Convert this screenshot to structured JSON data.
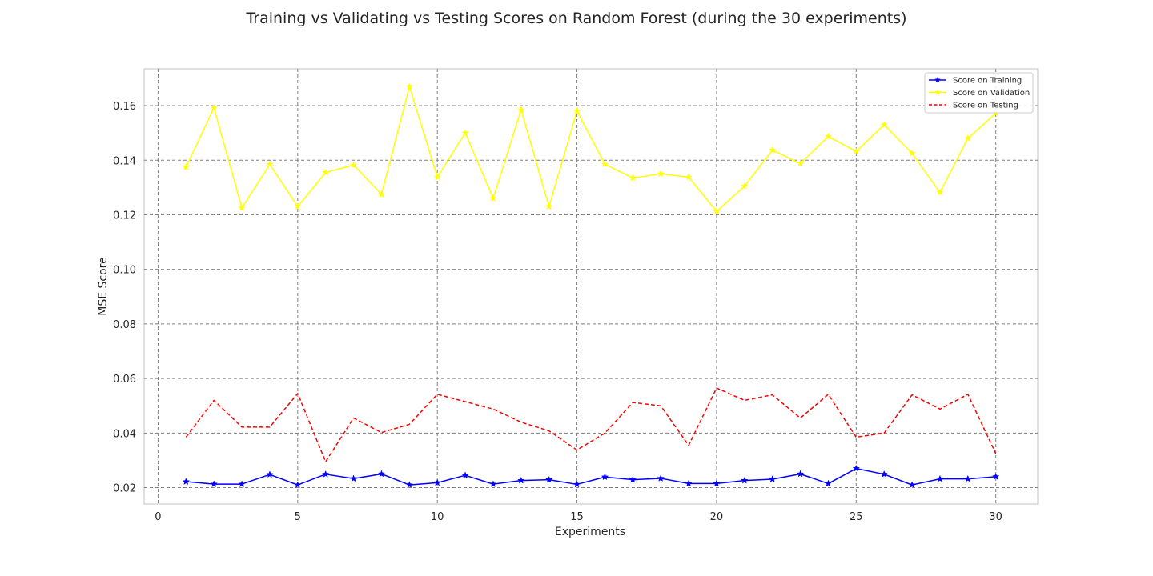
{
  "chart_data": {
    "type": "line",
    "title": "Training vs Validating vs Testing Scores on Random Forest (during the 30 experiments)",
    "xlabel": "Experiments",
    "ylabel": "MSE Score",
    "xlim": [
      -0.5,
      31.5
    ],
    "ylim": [
      0.014,
      0.1735
    ],
    "xticks": [
      0,
      5,
      10,
      15,
      20,
      25,
      30
    ],
    "xtick_labels": [
      "0",
      "5",
      "10",
      "15",
      "20",
      "25",
      "30"
    ],
    "yticks": [
      0.02,
      0.04,
      0.06,
      0.08,
      0.1,
      0.12,
      0.14,
      0.16
    ],
    "ytick_labels": [
      "0.02",
      "0.04",
      "0.06",
      "0.08",
      "0.10",
      "0.12",
      "0.14",
      "0.16"
    ],
    "grid": true,
    "legend_position": "top-right",
    "x": [
      1,
      2,
      3,
      4,
      5,
      6,
      7,
      8,
      9,
      10,
      11,
      12,
      13,
      14,
      15,
      16,
      17,
      18,
      19,
      20,
      21,
      22,
      23,
      24,
      25,
      26,
      27,
      28,
      29,
      30
    ],
    "series": [
      {
        "name": "Score on Training",
        "color": "#0000ff",
        "style": "solid",
        "marker": "star",
        "values": [
          0.0222,
          0.0213,
          0.0213,
          0.0248,
          0.021,
          0.0249,
          0.0233,
          0.025,
          0.021,
          0.0218,
          0.0245,
          0.0213,
          0.0226,
          0.0229,
          0.0212,
          0.0239,
          0.0229,
          0.0234,
          0.0215,
          0.0215,
          0.0226,
          0.0231,
          0.025,
          0.0215,
          0.027,
          0.0249,
          0.021,
          0.0232,
          0.0232,
          0.024
        ]
      },
      {
        "name": "Score on Validation",
        "color": "#ffff00",
        "style": "solid",
        "marker": "star",
        "values": [
          0.1375,
          0.1592,
          0.1225,
          0.1385,
          0.123,
          0.1355,
          0.1382,
          0.1275,
          0.167,
          0.1338,
          0.15,
          0.126,
          0.1585,
          0.123,
          0.158,
          0.1385,
          0.1335,
          0.135,
          0.1338,
          0.1212,
          0.1305,
          0.1437,
          0.1388,
          0.1487,
          0.1432,
          0.153,
          0.1425,
          0.1282,
          0.148,
          0.1572
        ]
      },
      {
        "name": "Score on Testing",
        "color": "#ff0000",
        "style": "dashed",
        "marker": "none",
        "values": [
          0.0385,
          0.052,
          0.0422,
          0.0422,
          0.0545,
          0.0295,
          0.0455,
          0.0402,
          0.0432,
          0.0542,
          0.0515,
          0.0488,
          0.044,
          0.0408,
          0.0338,
          0.04,
          0.0512,
          0.05,
          0.0355,
          0.0565,
          0.052,
          0.054,
          0.0455,
          0.0542,
          0.0385,
          0.04,
          0.054,
          0.0488,
          0.0542,
          0.0325
        ]
      }
    ]
  },
  "style": {
    "grid_color": "#808080",
    "frame_color": "#cccccc",
    "text_color": "#262626"
  }
}
